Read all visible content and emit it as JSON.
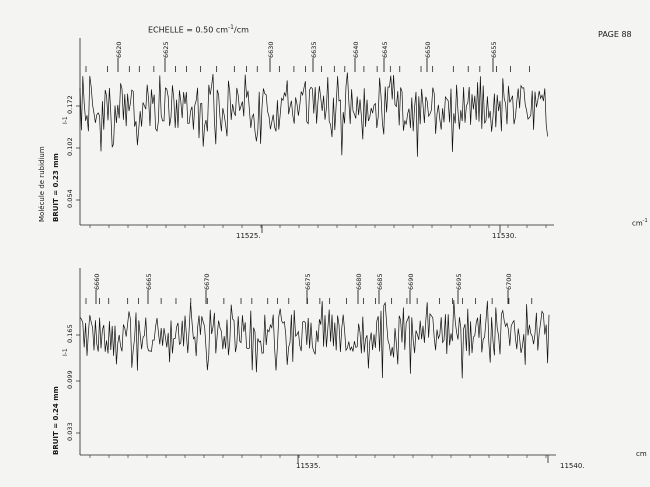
{
  "header": {
    "scale_prefix": "ECHELLE = 0.50 cm",
    "scale_exp": "-1",
    "scale_suffix": "/cm",
    "page_label": "PAGE 88"
  },
  "side_label": "Molécule de rubidium",
  "unit_label_top": "cm",
  "unit_label_top_exp": "-1",
  "panels": [
    {
      "noise_label": "BRUIT = 0.23 mm",
      "intensity_label": "I-1",
      "y_ticks": [
        "0.172",
        "0.102",
        "0.054"
      ],
      "x_ticks": [
        "11525.",
        "11530."
      ],
      "line_labels": [
        "6620",
        "6625",
        "6630",
        "6635",
        "6640",
        "6645",
        "6650",
        "6655"
      ],
      "unit_label": "cm"
    },
    {
      "noise_label": "BRUIT = 0.24 mm",
      "intensity_label": "I-1",
      "y_ticks": [
        "0.165",
        "0.099",
        "0.033"
      ],
      "x_ticks": [
        "11535.",
        "11540."
      ],
      "line_labels": [
        "6660",
        "6665",
        "6670",
        "6675",
        "6680",
        "6685",
        "6690",
        "6695",
        "6700"
      ],
      "unit_label": "cm"
    }
  ]
}
